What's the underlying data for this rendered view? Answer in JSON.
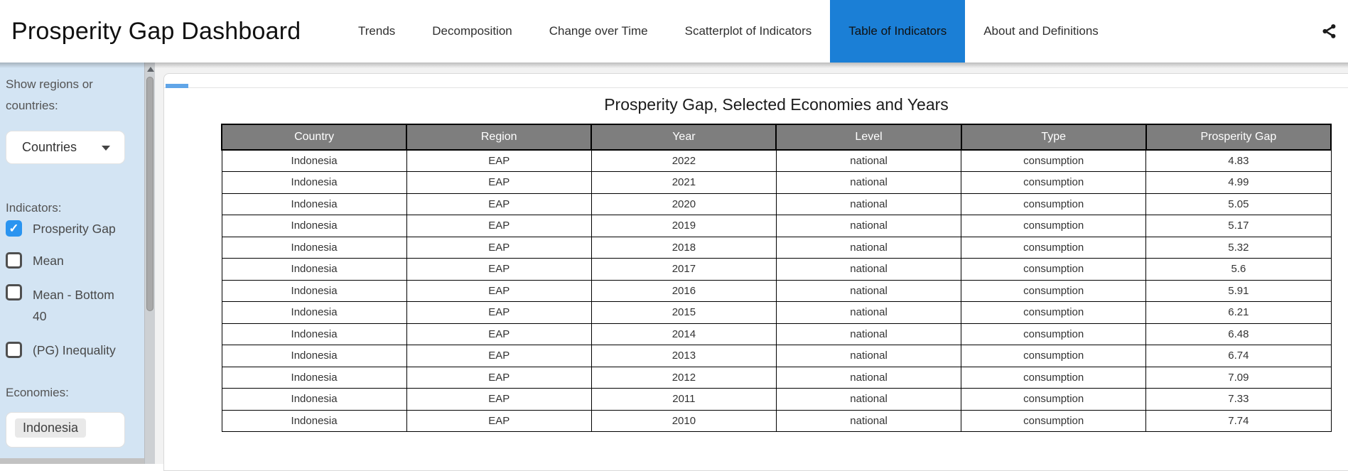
{
  "header": {
    "title": "Prosperity Gap Dashboard",
    "tabs": [
      {
        "label": "Trends",
        "active": false
      },
      {
        "label": "Decomposition",
        "active": false
      },
      {
        "label": "Change over Time",
        "active": false
      },
      {
        "label": "Scatterplot of Indicators",
        "active": false
      },
      {
        "label": "Table of Indicators",
        "active": true
      },
      {
        "label": "About and Definitions",
        "active": false
      }
    ],
    "share_icon": "share-icon"
  },
  "sidebar": {
    "show_regions_label": "Show regions or countries:",
    "region_dropdown": {
      "value": "Countries",
      "icon": "chevron-down-icon"
    },
    "indicators_label": "Indicators:",
    "indicators": [
      {
        "label": "Prosperity Gap",
        "checked": true
      },
      {
        "label": "Mean",
        "checked": false
      },
      {
        "label": "Mean - Bottom 40",
        "checked": false
      },
      {
        "label": "(PG) Inequality",
        "checked": false
      }
    ],
    "economies_label": "Economies:",
    "economies_selected": [
      "Indonesia"
    ]
  },
  "main": {
    "table_title": "Prosperity Gap, Selected Economies and Years",
    "table": {
      "columns": [
        "Country",
        "Region",
        "Year",
        "Level",
        "Type",
        "Prosperity Gap"
      ],
      "rows": [
        [
          "Indonesia",
          "EAP",
          "2022",
          "national",
          "consumption",
          "4.83"
        ],
        [
          "Indonesia",
          "EAP",
          "2021",
          "national",
          "consumption",
          "4.99"
        ],
        [
          "Indonesia",
          "EAP",
          "2020",
          "national",
          "consumption",
          "5.05"
        ],
        [
          "Indonesia",
          "EAP",
          "2019",
          "national",
          "consumption",
          "5.17"
        ],
        [
          "Indonesia",
          "EAP",
          "2018",
          "national",
          "consumption",
          "5.32"
        ],
        [
          "Indonesia",
          "EAP",
          "2017",
          "national",
          "consumption",
          "5.6"
        ],
        [
          "Indonesia",
          "EAP",
          "2016",
          "national",
          "consumption",
          "5.91"
        ],
        [
          "Indonesia",
          "EAP",
          "2015",
          "national",
          "consumption",
          "6.21"
        ],
        [
          "Indonesia",
          "EAP",
          "2014",
          "national",
          "consumption",
          "6.48"
        ],
        [
          "Indonesia",
          "EAP",
          "2013",
          "national",
          "consumption",
          "6.74"
        ],
        [
          "Indonesia",
          "EAP",
          "2012",
          "national",
          "consumption",
          "7.09"
        ],
        [
          "Indonesia",
          "EAP",
          "2011",
          "national",
          "consumption",
          "7.33"
        ],
        [
          "Indonesia",
          "EAP",
          "2010",
          "national",
          "consumption",
          "7.74"
        ]
      ]
    }
  },
  "colors": {
    "active_tab_bg": "#1b7fd6",
    "checkbox_checked": "#2a94f0",
    "sidebar_bg": "#d3e4f3",
    "table_header_bg": "#7e7e7e",
    "tab_indicator": "#60a5e8"
  },
  "glyphs": {
    "checkmark": "✓"
  }
}
